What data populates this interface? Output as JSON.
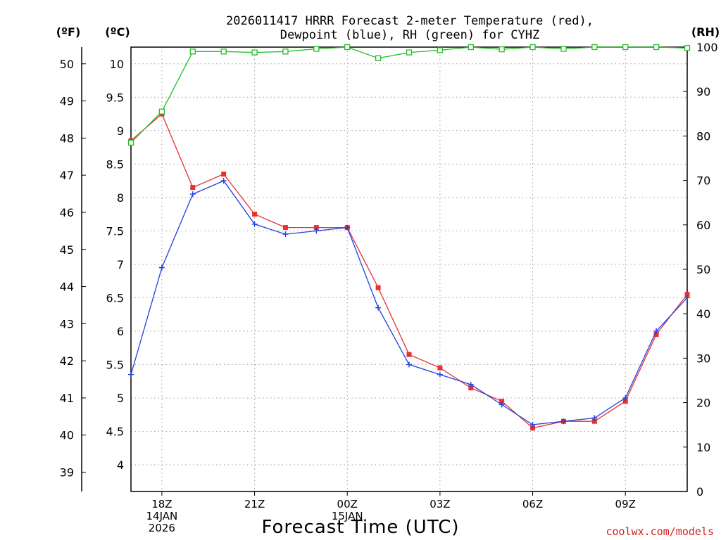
{
  "chart_data": {
    "type": "line",
    "title_line1": "2026011417 HRRR Forecast 2-meter Temperature (red),",
    "title_line2": "Dewpoint (blue), RH (green) for CYHZ",
    "xlabel": "Forecast Time (UTC)",
    "credit": "coolwx.com/models",
    "axis_units": {
      "fahrenheit": "(ºF)",
      "celsius": "(ºC)",
      "rh": "(RH)"
    },
    "x_hours": [
      17,
      18,
      19,
      20,
      21,
      22,
      23,
      24,
      25,
      26,
      27,
      28,
      29,
      30,
      31,
      32,
      33,
      34,
      35
    ],
    "x_ticks": [
      {
        "hour": 18,
        "lines": [
          "18Z",
          "14JAN",
          "2026"
        ]
      },
      {
        "hour": 21,
        "lines": [
          "21Z"
        ]
      },
      {
        "hour": 24,
        "lines": [
          "00Z",
          "15JAN"
        ]
      },
      {
        "hour": 27,
        "lines": [
          "03Z"
        ]
      },
      {
        "hour": 30,
        "lines": [
          "06Z"
        ]
      },
      {
        "hour": 33,
        "lines": [
          "09Z"
        ]
      }
    ],
    "xlim": [
      17,
      35
    ],
    "celsius": {
      "ylim": [
        3.6,
        10.25
      ],
      "ticks": [
        "4",
        "4.5",
        "5",
        "5.5",
        "6",
        "6.5",
        "7",
        "7.5",
        "8",
        "8.5",
        "9",
        "9.5",
        "10"
      ]
    },
    "fahrenheit": {
      "ticks": [
        "39",
        "40",
        "41",
        "42",
        "43",
        "44",
        "45",
        "46",
        "47",
        "48",
        "49",
        "50"
      ]
    },
    "rh": {
      "ylim": [
        0,
        100
      ],
      "ticks": [
        "0",
        "10",
        "20",
        "30",
        "40",
        "50",
        "60",
        "70",
        "80",
        "90",
        "100"
      ]
    },
    "series": [
      {
        "name": "2-meter Temperature",
        "color": "#e83030",
        "marker": "filled-square",
        "axis": "celsius",
        "values": [
          8.85,
          9.25,
          8.15,
          8.35,
          7.75,
          7.55,
          7.55,
          7.55,
          6.65,
          5.65,
          5.45,
          5.15,
          4.95,
          4.55,
          4.65,
          4.65,
          4.95,
          5.95,
          6.55
        ]
      },
      {
        "name": "Dewpoint",
        "color": "#2040e0",
        "marker": "plus",
        "axis": "celsius",
        "values": [
          5.35,
          6.95,
          8.05,
          8.25,
          7.6,
          7.45,
          7.5,
          7.55,
          6.35,
          5.5,
          5.35,
          5.2,
          4.9,
          4.6,
          4.65,
          4.7,
          5.0,
          6.0,
          6.5
        ]
      },
      {
        "name": "RH",
        "color": "#20c020",
        "marker": "open-square",
        "axis": "rh",
        "values": [
          78.5,
          85.5,
          99,
          99,
          98.8,
          99,
          99.6,
          100,
          97.5,
          98.8,
          99.3,
          100,
          99.5,
          100,
          99.6,
          100,
          100,
          100,
          99.8
        ]
      }
    ]
  }
}
